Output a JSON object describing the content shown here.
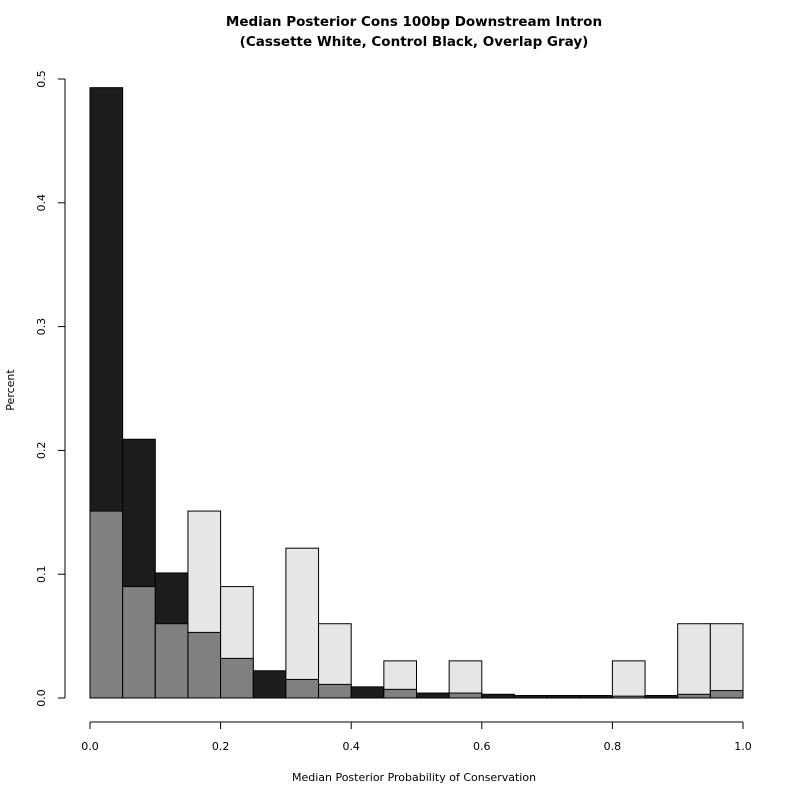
{
  "chart_data": {
    "type": "histogram",
    "title": "Median Posterior Cons 100bp Downstream Intron",
    "subtitle": "(Cassette White, Control Black, Overlap Gray)",
    "xlabel": "Median Posterior Probability of Conservation",
    "ylabel": "Percent",
    "xlim": [
      0,
      1
    ],
    "ylim": [
      0,
      0.5
    ],
    "x_ticks": [
      "0.0",
      "0.2",
      "0.4",
      "0.6",
      "0.8",
      "1.0"
    ],
    "y_ticks": [
      "0.0",
      "0.1",
      "0.2",
      "0.3",
      "0.4",
      "0.5"
    ],
    "bin_width": 0.05,
    "bin_starts": [
      0.0,
      0.05,
      0.1,
      0.15,
      0.2,
      0.25,
      0.3,
      0.35,
      0.4,
      0.45,
      0.5,
      0.55,
      0.6,
      0.65,
      0.7,
      0.75,
      0.8,
      0.85,
      0.9,
      0.95
    ],
    "series": [
      {
        "name": "Cassette",
        "color": "#e6e6e6",
        "values": [
          0.151,
          0.09,
          0.06,
          0.151,
          0.09,
          0.0,
          0.121,
          0.06,
          0.0,
          0.03,
          0.0,
          0.03,
          0.0,
          0.0,
          0.0,
          0.0,
          0.03,
          0.0,
          0.06,
          0.06
        ]
      },
      {
        "name": "Control",
        "color": "#1c1c1c",
        "values": [
          0.493,
          0.209,
          0.101,
          0.053,
          0.032,
          0.022,
          0.015,
          0.011,
          0.009,
          0.007,
          0.004,
          0.004,
          0.003,
          0.002,
          0.002,
          0.002,
          0.0015,
          0.002,
          0.003,
          0.006
        ]
      }
    ],
    "overlap_color": "#808080"
  }
}
